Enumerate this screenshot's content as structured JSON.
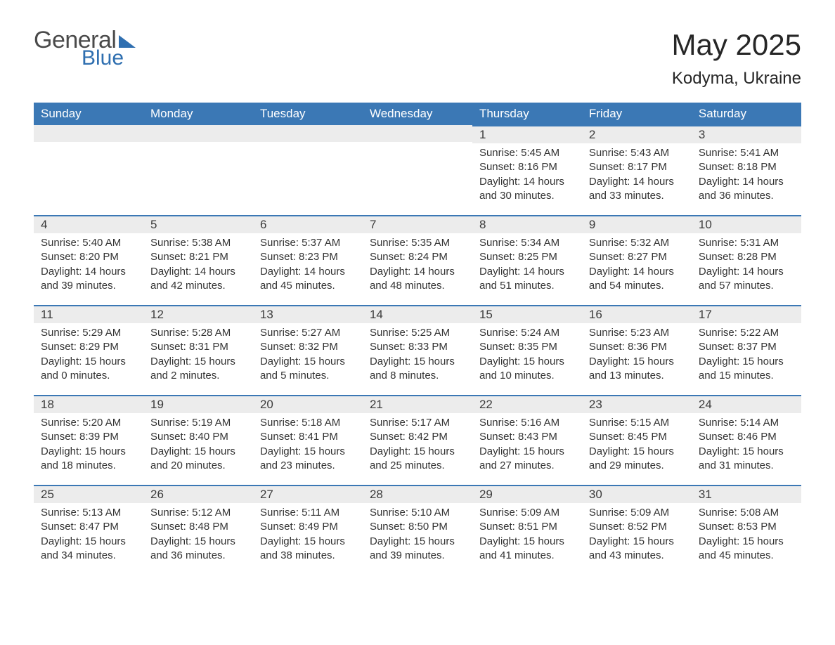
{
  "logo": {
    "word1": "General",
    "word2": "Blue"
  },
  "title": "May 2025",
  "location": "Kodyma, Ukraine",
  "colors": {
    "header_bg": "#3b78b5",
    "header_text": "#ffffff",
    "daybar_bg": "#ececec",
    "daybar_border": "#3b78b5",
    "body_text": "#333333",
    "logo_gray": "#4a4a4a",
    "logo_blue": "#2f6fb0",
    "page_bg": "#ffffff"
  },
  "daysOfWeek": [
    "Sunday",
    "Monday",
    "Tuesday",
    "Wednesday",
    "Thursday",
    "Friday",
    "Saturday"
  ],
  "labels": {
    "sunrise": "Sunrise:",
    "sunset": "Sunset:",
    "daylight": "Daylight:"
  },
  "weeks": [
    [
      null,
      null,
      null,
      null,
      {
        "n": "1",
        "sr": "5:45 AM",
        "ss": "8:16 PM",
        "dl": "14 hours and 30 minutes."
      },
      {
        "n": "2",
        "sr": "5:43 AM",
        "ss": "8:17 PM",
        "dl": "14 hours and 33 minutes."
      },
      {
        "n": "3",
        "sr": "5:41 AM",
        "ss": "8:18 PM",
        "dl": "14 hours and 36 minutes."
      }
    ],
    [
      {
        "n": "4",
        "sr": "5:40 AM",
        "ss": "8:20 PM",
        "dl": "14 hours and 39 minutes."
      },
      {
        "n": "5",
        "sr": "5:38 AM",
        "ss": "8:21 PM",
        "dl": "14 hours and 42 minutes."
      },
      {
        "n": "6",
        "sr": "5:37 AM",
        "ss": "8:23 PM",
        "dl": "14 hours and 45 minutes."
      },
      {
        "n": "7",
        "sr": "5:35 AM",
        "ss": "8:24 PM",
        "dl": "14 hours and 48 minutes."
      },
      {
        "n": "8",
        "sr": "5:34 AM",
        "ss": "8:25 PM",
        "dl": "14 hours and 51 minutes."
      },
      {
        "n": "9",
        "sr": "5:32 AM",
        "ss": "8:27 PM",
        "dl": "14 hours and 54 minutes."
      },
      {
        "n": "10",
        "sr": "5:31 AM",
        "ss": "8:28 PM",
        "dl": "14 hours and 57 minutes."
      }
    ],
    [
      {
        "n": "11",
        "sr": "5:29 AM",
        "ss": "8:29 PM",
        "dl": "15 hours and 0 minutes."
      },
      {
        "n": "12",
        "sr": "5:28 AM",
        "ss": "8:31 PM",
        "dl": "15 hours and 2 minutes."
      },
      {
        "n": "13",
        "sr": "5:27 AM",
        "ss": "8:32 PM",
        "dl": "15 hours and 5 minutes."
      },
      {
        "n": "14",
        "sr": "5:25 AM",
        "ss": "8:33 PM",
        "dl": "15 hours and 8 minutes."
      },
      {
        "n": "15",
        "sr": "5:24 AM",
        "ss": "8:35 PM",
        "dl": "15 hours and 10 minutes."
      },
      {
        "n": "16",
        "sr": "5:23 AM",
        "ss": "8:36 PM",
        "dl": "15 hours and 13 minutes."
      },
      {
        "n": "17",
        "sr": "5:22 AM",
        "ss": "8:37 PM",
        "dl": "15 hours and 15 minutes."
      }
    ],
    [
      {
        "n": "18",
        "sr": "5:20 AM",
        "ss": "8:39 PM",
        "dl": "15 hours and 18 minutes."
      },
      {
        "n": "19",
        "sr": "5:19 AM",
        "ss": "8:40 PM",
        "dl": "15 hours and 20 minutes."
      },
      {
        "n": "20",
        "sr": "5:18 AM",
        "ss": "8:41 PM",
        "dl": "15 hours and 23 minutes."
      },
      {
        "n": "21",
        "sr": "5:17 AM",
        "ss": "8:42 PM",
        "dl": "15 hours and 25 minutes."
      },
      {
        "n": "22",
        "sr": "5:16 AM",
        "ss": "8:43 PM",
        "dl": "15 hours and 27 minutes."
      },
      {
        "n": "23",
        "sr": "5:15 AM",
        "ss": "8:45 PM",
        "dl": "15 hours and 29 minutes."
      },
      {
        "n": "24",
        "sr": "5:14 AM",
        "ss": "8:46 PM",
        "dl": "15 hours and 31 minutes."
      }
    ],
    [
      {
        "n": "25",
        "sr": "5:13 AM",
        "ss": "8:47 PM",
        "dl": "15 hours and 34 minutes."
      },
      {
        "n": "26",
        "sr": "5:12 AM",
        "ss": "8:48 PM",
        "dl": "15 hours and 36 minutes."
      },
      {
        "n": "27",
        "sr": "5:11 AM",
        "ss": "8:49 PM",
        "dl": "15 hours and 38 minutes."
      },
      {
        "n": "28",
        "sr": "5:10 AM",
        "ss": "8:50 PM",
        "dl": "15 hours and 39 minutes."
      },
      {
        "n": "29",
        "sr": "5:09 AM",
        "ss": "8:51 PM",
        "dl": "15 hours and 41 minutes."
      },
      {
        "n": "30",
        "sr": "5:09 AM",
        "ss": "8:52 PM",
        "dl": "15 hours and 43 minutes."
      },
      {
        "n": "31",
        "sr": "5:08 AM",
        "ss": "8:53 PM",
        "dl": "15 hours and 45 minutes."
      }
    ]
  ]
}
